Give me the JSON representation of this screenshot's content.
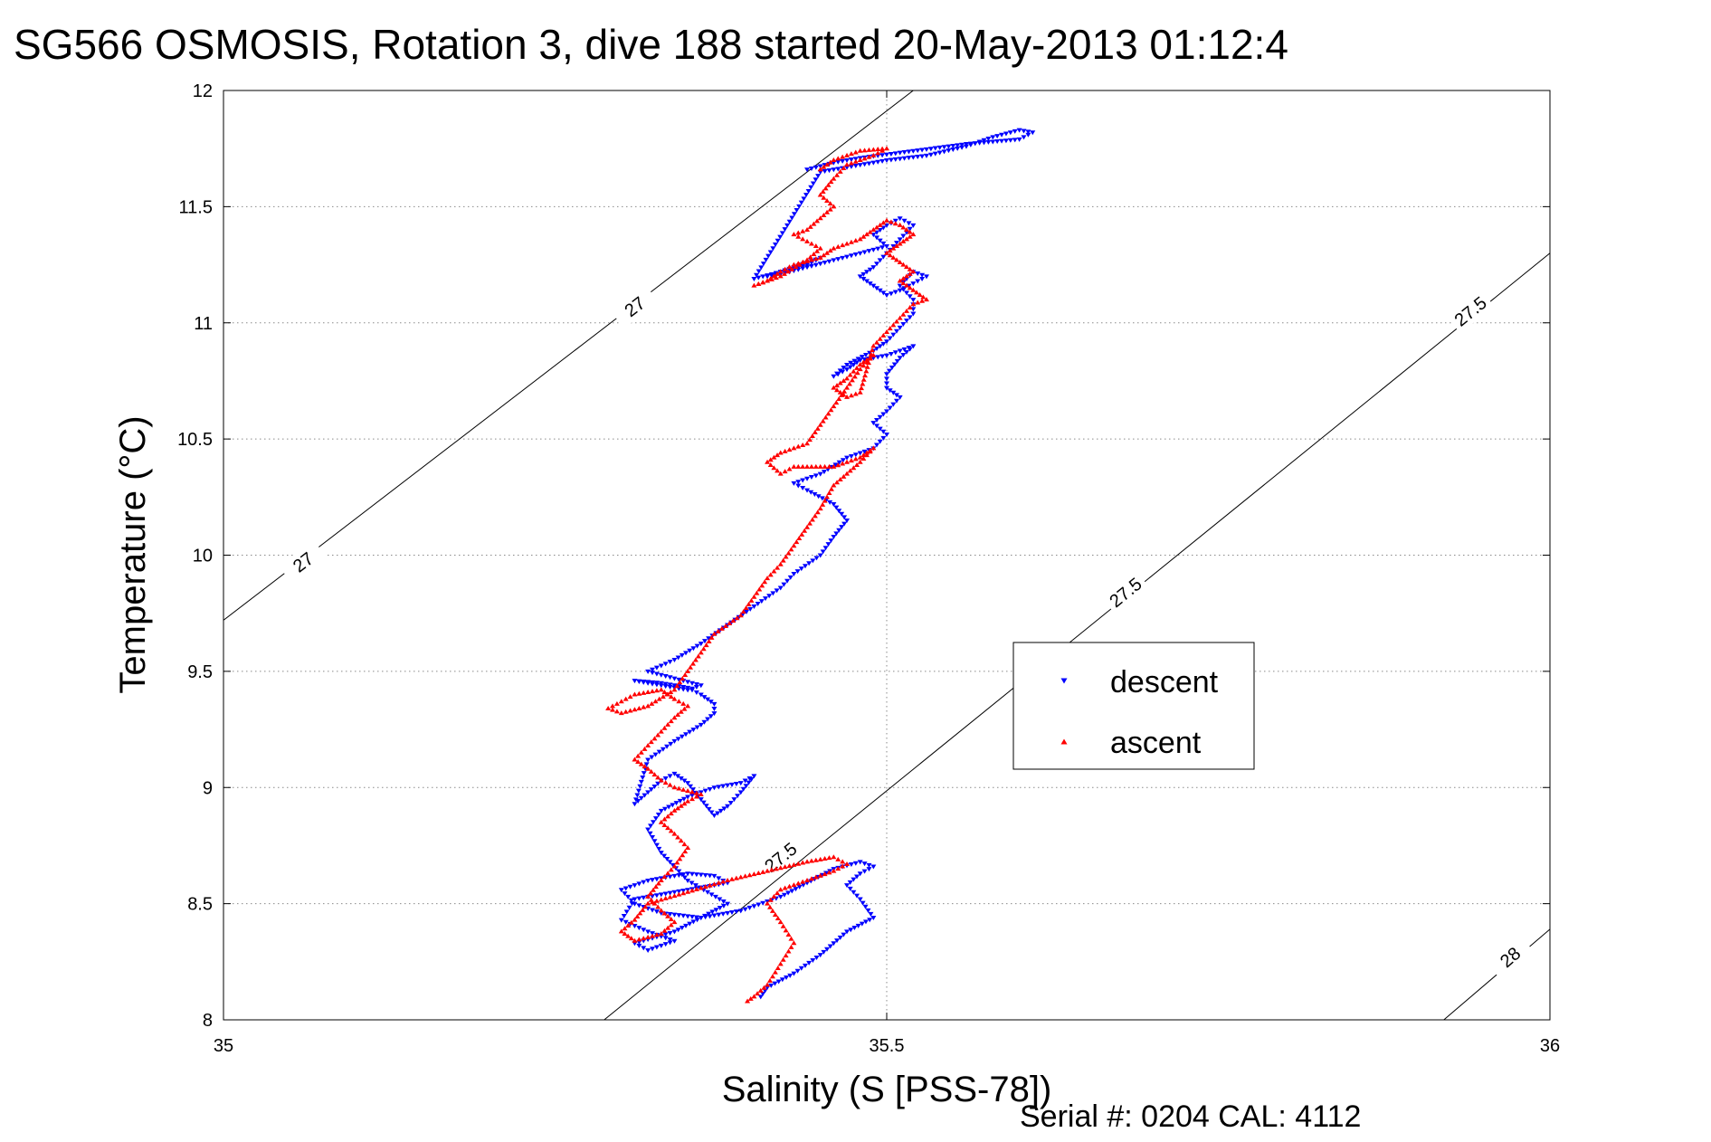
{
  "chart_data": {
    "type": "scatter",
    "title": "SG566 OSMOSIS, Rotation 3, dive 188 started 20-May-2013 01:12:4",
    "xlabel": "Salinity (S [PSS-78])",
    "ylabel": "Temperature (°C)",
    "footer": "Serial #: 0204  CAL: 4112",
    "xlim": [
      35,
      36
    ],
    "ylim": [
      8,
      12
    ],
    "xticks": [
      35,
      35.5,
      36
    ],
    "xtick_labels": [
      "35",
      "35.5",
      "36"
    ],
    "yticks": [
      8,
      8.5,
      9,
      9.5,
      10,
      10.5,
      11,
      11.5,
      12
    ],
    "ytick_labels": [
      "8",
      "8.5",
      "9",
      "9.5",
      "10",
      "10.5",
      "11",
      "11.5",
      "12"
    ],
    "grid": true,
    "legend_position": "center-right",
    "density_contours": [
      {
        "label": "27",
        "points": [
          [
            35,
            9.72
          ],
          [
            35.52,
            12.0
          ]
        ],
        "labels_at": [
          [
            35.06,
            9.97
          ],
          [
            35.31,
            11.07
          ]
        ]
      },
      {
        "label": "27.5",
        "points": [
          [
            35.287,
            8.0
          ],
          [
            36,
            11.3
          ]
        ],
        "labels_at": [
          [
            35.42,
            8.7
          ],
          [
            35.68,
            9.84
          ],
          [
            35.94,
            11.05
          ]
        ]
      },
      {
        "label": "28",
        "points": [
          [
            35.92,
            8.0
          ],
          [
            36,
            8.39
          ]
        ],
        "labels_at": [
          [
            35.97,
            8.27
          ]
        ]
      }
    ],
    "series": [
      {
        "name": "descent",
        "color": "#0000ff",
        "marker": "triangle-down",
        "paths": [
          [
            [
              35.405,
              8.1
            ],
            [
              35.41,
              8.14
            ],
            [
              35.43,
              8.2
            ],
            [
              35.45,
              8.28
            ],
            [
              35.47,
              8.38
            ],
            [
              35.49,
              8.44
            ],
            [
              35.48,
              8.52
            ],
            [
              35.47,
              8.58
            ],
            [
              35.48,
              8.63
            ],
            [
              35.49,
              8.66
            ],
            [
              35.48,
              8.68
            ],
            [
              35.46,
              8.65
            ],
            [
              35.44,
              8.59
            ],
            [
              35.42,
              8.53
            ],
            [
              35.39,
              8.47
            ],
            [
              35.36,
              8.44
            ],
            [
              35.33,
              8.46
            ],
            [
              35.31,
              8.5
            ],
            [
              35.3,
              8.56
            ],
            [
              35.32,
              8.6
            ],
            [
              35.35,
              8.63
            ],
            [
              35.37,
              8.62
            ],
            [
              35.38,
              8.59
            ],
            [
              35.34,
              8.55
            ],
            [
              35.31,
              8.52
            ],
            [
              35.3,
              8.43
            ],
            [
              35.32,
              8.38
            ],
            [
              35.34,
              8.34
            ],
            [
              35.32,
              8.3
            ],
            [
              35.31,
              8.33
            ],
            [
              35.34,
              8.38
            ],
            [
              35.36,
              8.44
            ],
            [
              35.38,
              8.5
            ],
            [
              35.35,
              8.6
            ],
            [
              35.33,
              8.72
            ],
            [
              35.32,
              8.82
            ],
            [
              35.33,
              8.9
            ],
            [
              35.35,
              8.96
            ],
            [
              35.37,
              9.0
            ],
            [
              35.39,
              9.02
            ],
            [
              35.4,
              9.05
            ],
            [
              35.39,
              8.98
            ],
            [
              35.38,
              8.92
            ],
            [
              35.37,
              8.88
            ],
            [
              35.36,
              8.95
            ],
            [
              35.35,
              9.02
            ],
            [
              35.34,
              9.06
            ],
            [
              35.33,
              9.03
            ],
            [
              35.32,
              8.98
            ],
            [
              35.31,
              8.93
            ],
            [
              35.32,
              9.12
            ],
            [
              35.34,
              9.2
            ],
            [
              35.36,
              9.27
            ],
            [
              35.37,
              9.32
            ],
            [
              35.37,
              9.36
            ],
            [
              35.36,
              9.4
            ],
            [
              35.35,
              9.43
            ],
            [
              35.33,
              9.45
            ],
            [
              35.31,
              9.46
            ],
            [
              35.33,
              9.44
            ],
            [
              35.35,
              9.42
            ],
            [
              35.36,
              9.44
            ],
            [
              35.34,
              9.47
            ],
            [
              35.32,
              9.5
            ],
            [
              35.34,
              9.55
            ],
            [
              35.36,
              9.62
            ],
            [
              35.38,
              9.7
            ],
            [
              35.4,
              9.78
            ],
            [
              35.42,
              9.86
            ],
            [
              35.43,
              9.92
            ],
            [
              35.45,
              10.0
            ],
            [
              35.46,
              10.08
            ],
            [
              35.47,
              10.15
            ],
            [
              35.46,
              10.22
            ],
            [
              35.44,
              10.28
            ],
            [
              35.43,
              10.31
            ],
            [
              35.45,
              10.35
            ],
            [
              35.47,
              10.42
            ],
            [
              35.49,
              10.46
            ],
            [
              35.5,
              10.52
            ],
            [
              35.49,
              10.57
            ],
            [
              35.5,
              10.62
            ],
            [
              35.51,
              10.68
            ],
            [
              35.5,
              10.72
            ],
            [
              35.5,
              10.78
            ],
            [
              35.51,
              10.85
            ],
            [
              35.52,
              10.9
            ],
            [
              35.5,
              10.86
            ],
            [
              35.48,
              10.84
            ],
            [
              35.47,
              10.8
            ],
            [
              35.46,
              10.77
            ],
            [
              35.47,
              10.82
            ],
            [
              35.49,
              10.88
            ],
            [
              35.5,
              10.92
            ],
            [
              35.51,
              10.98
            ],
            [
              35.52,
              11.04
            ],
            [
              35.52,
              11.1
            ],
            [
              35.51,
              11.16
            ],
            [
              35.52,
              11.22
            ],
            [
              35.53,
              11.2
            ],
            [
              35.52,
              11.17
            ],
            [
              35.51,
              11.14
            ],
            [
              35.5,
              11.12
            ],
            [
              35.49,
              11.16
            ],
            [
              35.48,
              11.2
            ],
            [
              35.49,
              11.24
            ],
            [
              35.5,
              11.3
            ],
            [
              35.51,
              11.36
            ],
            [
              35.52,
              11.42
            ],
            [
              35.51,
              11.45
            ],
            [
              35.5,
              11.42
            ],
            [
              35.49,
              11.38
            ],
            [
              35.5,
              11.33
            ],
            [
              35.48,
              11.3
            ],
            [
              35.46,
              11.27
            ],
            [
              35.44,
              11.24
            ],
            [
              35.42,
              11.21
            ],
            [
              35.41,
              11.2
            ],
            [
              35.43,
              11.24
            ],
            [
              35.45,
              11.28
            ],
            [
              35.44,
              11.25
            ],
            [
              35.42,
              11.22
            ],
            [
              35.4,
              11.19
            ],
            [
              35.45,
              11.65
            ],
            [
              35.48,
              11.68
            ],
            [
              35.5,
              11.7
            ],
            [
              35.53,
              11.72
            ],
            [
              35.56,
              11.76
            ],
            [
              35.58,
              11.8
            ],
            [
              35.6,
              11.83
            ],
            [
              35.61,
              11.82
            ],
            [
              35.6,
              11.79
            ],
            [
              35.56,
              11.77
            ],
            [
              35.52,
              11.74
            ],
            [
              35.48,
              11.71
            ],
            [
              35.46,
              11.69
            ],
            [
              35.44,
              11.66
            ]
          ]
        ]
      },
      {
        "name": "ascent",
        "color": "#ff0000",
        "marker": "triangle-up",
        "paths": [
          [
            [
              35.395,
              8.08
            ],
            [
              35.4,
              8.1
            ],
            [
              35.41,
              8.15
            ],
            [
              35.42,
              8.24
            ],
            [
              35.43,
              8.33
            ],
            [
              35.42,
              8.42
            ],
            [
              35.41,
              8.5
            ],
            [
              35.42,
              8.56
            ],
            [
              35.44,
              8.6
            ],
            [
              35.46,
              8.64
            ],
            [
              35.47,
              8.67
            ],
            [
              35.46,
              8.7
            ],
            [
              35.44,
              8.68
            ],
            [
              35.41,
              8.64
            ],
            [
              35.38,
              8.6
            ],
            [
              35.35,
              8.55
            ],
            [
              35.32,
              8.5
            ],
            [
              35.31,
              8.43
            ],
            [
              35.3,
              8.38
            ],
            [
              35.31,
              8.34
            ],
            [
              35.33,
              8.37
            ],
            [
              35.34,
              8.42
            ],
            [
              35.33,
              8.47
            ],
            [
              35.32,
              8.53
            ],
            [
              35.33,
              8.6
            ],
            [
              35.34,
              8.66
            ],
            [
              35.35,
              8.74
            ],
            [
              35.34,
              8.8
            ],
            [
              35.33,
              8.85
            ],
            [
              35.34,
              8.9
            ],
            [
              35.35,
              8.94
            ],
            [
              35.36,
              8.97
            ],
            [
              35.34,
              9.0
            ],
            [
              35.33,
              9.03
            ],
            [
              35.32,
              9.08
            ],
            [
              35.31,
              9.12
            ],
            [
              35.32,
              9.18
            ],
            [
              35.33,
              9.24
            ],
            [
              35.34,
              9.3
            ],
            [
              35.35,
              9.35
            ],
            [
              35.34,
              9.38
            ],
            [
              35.33,
              9.42
            ],
            [
              35.31,
              9.4
            ],
            [
              35.3,
              9.37
            ],
            [
              35.29,
              9.34
            ],
            [
              35.3,
              9.32
            ],
            [
              35.32,
              9.35
            ],
            [
              35.34,
              9.42
            ],
            [
              35.35,
              9.5
            ],
            [
              35.36,
              9.58
            ],
            [
              35.37,
              9.66
            ],
            [
              35.39,
              9.74
            ],
            [
              35.4,
              9.82
            ],
            [
              35.41,
              9.9
            ],
            [
              35.42,
              9.96
            ],
            [
              35.43,
              10.04
            ],
            [
              35.44,
              10.12
            ],
            [
              35.45,
              10.2
            ],
            [
              35.46,
              10.3
            ],
            [
              35.48,
              10.4
            ],
            [
              35.49,
              10.46
            ],
            [
              35.48,
              10.42
            ],
            [
              35.46,
              10.38
            ],
            [
              35.43,
              10.38
            ],
            [
              35.42,
              10.35
            ],
            [
              35.41,
              10.4
            ],
            [
              35.42,
              10.44
            ],
            [
              35.44,
              10.48
            ],
            [
              35.45,
              10.56
            ],
            [
              35.46,
              10.64
            ],
            [
              35.47,
              10.72
            ],
            [
              35.48,
              10.8
            ],
            [
              35.49,
              10.86
            ],
            [
              35.48,
              10.82
            ],
            [
              35.47,
              10.76
            ],
            [
              35.46,
              10.72
            ],
            [
              35.47,
              10.68
            ],
            [
              35.48,
              10.7
            ],
            [
              35.49,
              10.9
            ],
            [
              35.5,
              10.96
            ],
            [
              35.51,
              11.02
            ],
            [
              35.52,
              11.08
            ],
            [
              35.53,
              11.1
            ],
            [
              35.52,
              11.14
            ],
            [
              35.51,
              11.18
            ],
            [
              35.52,
              11.22
            ],
            [
              35.51,
              11.26
            ],
            [
              35.5,
              11.3
            ],
            [
              35.51,
              11.34
            ],
            [
              35.52,
              11.38
            ],
            [
              35.51,
              11.42
            ],
            [
              35.5,
              11.44
            ],
            [
              35.49,
              11.4
            ],
            [
              35.48,
              11.36
            ],
            [
              35.46,
              11.32
            ],
            [
              35.45,
              11.28
            ],
            [
              35.43,
              11.25
            ],
            [
              35.42,
              11.22
            ],
            [
              35.41,
              11.18
            ],
            [
              35.4,
              11.16
            ],
            [
              35.42,
              11.2
            ],
            [
              35.44,
              11.27
            ],
            [
              35.45,
              11.32
            ],
            [
              35.44,
              11.35
            ],
            [
              35.43,
              11.38
            ],
            [
              35.44,
              11.4
            ],
            [
              35.45,
              11.45
            ],
            [
              35.46,
              11.5
            ],
            [
              35.45,
              11.55
            ],
            [
              35.46,
              11.62
            ],
            [
              35.47,
              11.68
            ],
            [
              35.49,
              11.72
            ],
            [
              35.5,
              11.75
            ],
            [
              35.48,
              11.74
            ],
            [
              35.46,
              11.7
            ],
            [
              35.45,
              11.66
            ]
          ]
        ]
      }
    ]
  }
}
